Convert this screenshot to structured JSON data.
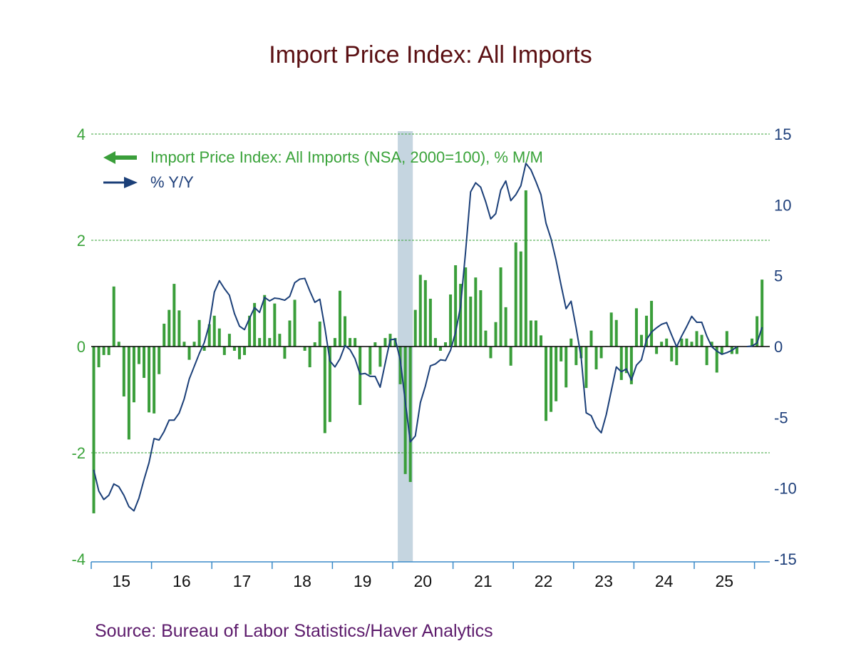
{
  "chart_data": {
    "type": "bar+line",
    "title": "Import Price Index: All Imports",
    "source": "Source:  Bureau of Labor Statistics/Haver Analytics",
    "colors": {
      "bars": "#3a9e3a",
      "line": "#1b3f78",
      "recession": "#c5d5e0",
      "grid": "#3aa33a",
      "xaxis": "#3a8ac8"
    },
    "grid": true,
    "legend_placement": "top-left",
    "left_axis": {
      "ylim": [
        -4,
        4
      ],
      "ticks": [
        "4",
        "2",
        "0",
        "-2",
        "-4"
      ]
    },
    "right_axis": {
      "ylim": [
        -15,
        15
      ],
      "ticks": [
        "15",
        "10",
        "5",
        "0",
        "-5",
        "-10",
        "-15"
      ]
    },
    "x_tick_labels": [
      "15",
      "16",
      "17",
      "18",
      "19",
      "20",
      "21",
      "22",
      "23",
      "24",
      "25"
    ],
    "recession_shading": [
      "2020-02",
      "2020-04"
    ],
    "x": [
      "2015-01",
      "2015-02",
      "2015-03",
      "2015-04",
      "2015-05",
      "2015-06",
      "2015-07",
      "2015-08",
      "2015-09",
      "2015-10",
      "2015-11",
      "2015-12",
      "2016-01",
      "2016-02",
      "2016-03",
      "2016-04",
      "2016-05",
      "2016-06",
      "2016-07",
      "2016-08",
      "2016-09",
      "2016-10",
      "2016-11",
      "2016-12",
      "2017-01",
      "2017-02",
      "2017-03",
      "2017-04",
      "2017-05",
      "2017-06",
      "2017-07",
      "2017-08",
      "2017-09",
      "2017-10",
      "2017-11",
      "2017-12",
      "2018-01",
      "2018-02",
      "2018-03",
      "2018-04",
      "2018-05",
      "2018-06",
      "2018-07",
      "2018-08",
      "2018-09",
      "2018-10",
      "2018-11",
      "2018-12",
      "2019-01",
      "2019-02",
      "2019-03",
      "2019-04",
      "2019-05",
      "2019-06",
      "2019-07",
      "2019-08",
      "2019-09",
      "2019-10",
      "2019-11",
      "2019-12",
      "2020-01",
      "2020-02",
      "2020-03",
      "2020-04",
      "2020-05",
      "2020-06",
      "2020-07",
      "2020-08",
      "2020-09",
      "2020-10",
      "2020-11",
      "2020-12",
      "2021-01",
      "2021-02",
      "2021-03",
      "2021-04",
      "2021-05",
      "2021-06",
      "2021-07",
      "2021-08",
      "2021-09",
      "2021-10",
      "2021-11",
      "2021-12",
      "2022-01",
      "2022-02",
      "2022-03",
      "2022-04",
      "2022-05",
      "2022-06",
      "2022-07",
      "2022-08",
      "2022-09",
      "2022-10",
      "2022-11",
      "2022-12",
      "2023-01",
      "2023-02",
      "2023-03",
      "2023-04",
      "2023-05",
      "2023-06",
      "2023-07",
      "2023-08",
      "2023-09",
      "2023-10",
      "2023-11",
      "2023-12",
      "2024-01",
      "2024-02",
      "2024-03",
      "2024-04",
      "2024-05",
      "2024-06",
      "2024-07",
      "2024-08",
      "2024-09",
      "2024-10",
      "2024-11",
      "2024-12",
      "2025-01",
      "2025-02",
      "2025-03",
      "2025-04",
      "2025-05",
      "2025-06",
      "2025-07",
      "2025-08",
      "2025-09",
      "2025-10",
      "2025-11",
      "2025-12",
      "2026-01",
      "2026-02"
    ],
    "series": [
      {
        "name": "Import Price Index: All Imports (NSA, 2000=100), % M/M",
        "type": "bar",
        "axis": "left",
        "values": [
          -3.14,
          -0.39,
          -0.16,
          -0.16,
          1.13,
          0.09,
          -0.94,
          -1.75,
          -1.05,
          -0.33,
          -0.59,
          -1.24,
          -1.26,
          -0.52,
          0.43,
          0.69,
          1.18,
          0.68,
          0.09,
          -0.25,
          0.09,
          0.5,
          -0.08,
          0.42,
          0.58,
          0.34,
          -0.16,
          0.24,
          -0.08,
          -0.24,
          -0.16,
          0.58,
          0.82,
          0.16,
          0.97,
          0.16,
          0.81,
          0.24,
          -0.23,
          0.49,
          0.88,
          0.01,
          -0.08,
          -0.39,
          0.08,
          0.47,
          -1.63,
          -1.42,
          0.16,
          1.05,
          0.57,
          0.16,
          0.16,
          -1.1,
          0.0,
          -0.53,
          0.08,
          -0.38,
          0.16,
          0.24,
          0.16,
          -0.71,
          -2.4,
          -2.55,
          0.69,
          1.35,
          1.25,
          0.9,
          0.16,
          -0.08,
          0.08,
          0.98,
          1.53,
          1.18,
          1.49,
          0.94,
          1.3,
          1.06,
          0.3,
          -0.22,
          0.46,
          1.49,
          0.74,
          -0.36,
          1.96,
          1.79,
          2.94,
          0.49,
          0.49,
          0.21,
          -1.4,
          -1.23,
          -1.03,
          -0.28,
          -0.77,
          0.15,
          -0.35,
          -0.22,
          -0.78,
          0.3,
          -0.43,
          -0.22,
          0.01,
          0.64,
          0.5,
          -0.63,
          -0.5,
          -0.71,
          0.72,
          0.22,
          0.58,
          0.86,
          -0.14,
          0.09,
          0.15,
          -0.28,
          -0.35,
          0.15,
          0.15,
          0.09,
          0.29,
          0.22,
          -0.35,
          0.09,
          -0.49,
          -0.14,
          0.29,
          -0.14,
          -0.14,
          null,
          0.0,
          0.15,
          0.57,
          1.26
        ]
      },
      {
        "name": "% Y/Y",
        "type": "line",
        "axis": "right",
        "values": [
          -8.7,
          -10.2,
          -10.8,
          -10.5,
          -9.7,
          -9.9,
          -10.5,
          -11.3,
          -11.6,
          -10.7,
          -9.4,
          -8.2,
          -6.5,
          -6.6,
          -6.0,
          -5.2,
          -5.2,
          -4.7,
          -3.7,
          -2.3,
          -1.4,
          -0.5,
          0.28,
          1.57,
          3.84,
          4.65,
          4.09,
          3.62,
          2.33,
          1.44,
          1.19,
          1.99,
          2.75,
          2.41,
          3.47,
          3.22,
          3.42,
          3.37,
          3.27,
          3.54,
          4.51,
          4.76,
          4.81,
          3.92,
          3.12,
          3.34,
          1.32,
          -1.02,
          -1.44,
          -0.86,
          0.07,
          -0.22,
          -0.86,
          -1.95,
          -1.9,
          -2.11,
          -2.11,
          -2.87,
          -1.19,
          0.48,
          0.52,
          -0.94,
          -3.88,
          -6.73,
          -6.31,
          -3.96,
          -2.79,
          -1.36,
          -1.23,
          -0.94,
          -0.99,
          -0.27,
          0.99,
          2.83,
          6.69,
          10.92,
          11.56,
          11.25,
          10.22,
          9.01,
          9.38,
          11.05,
          11.69,
          10.3,
          10.72,
          11.35,
          12.93,
          12.48,
          11.64,
          10.72,
          8.71,
          7.61,
          6.1,
          4.34,
          2.67,
          3.2,
          1.32,
          -0.77,
          -4.68,
          -4.88,
          -5.69,
          -6.09,
          -4.8,
          -3.12,
          -1.44,
          -1.78,
          -1.58,
          -2.37,
          -1.32,
          -0.94,
          0.48,
          1.02,
          1.32,
          1.57,
          1.69,
          0.82,
          -0.02,
          0.74,
          1.41,
          2.13,
          1.71,
          1.71,
          0.74,
          -0.02,
          -0.32,
          -0.55,
          -0.43,
          -0.27,
          -0.02,
          null,
          0.0,
          0.03,
          0.25,
          1.36
        ]
      }
    ]
  }
}
